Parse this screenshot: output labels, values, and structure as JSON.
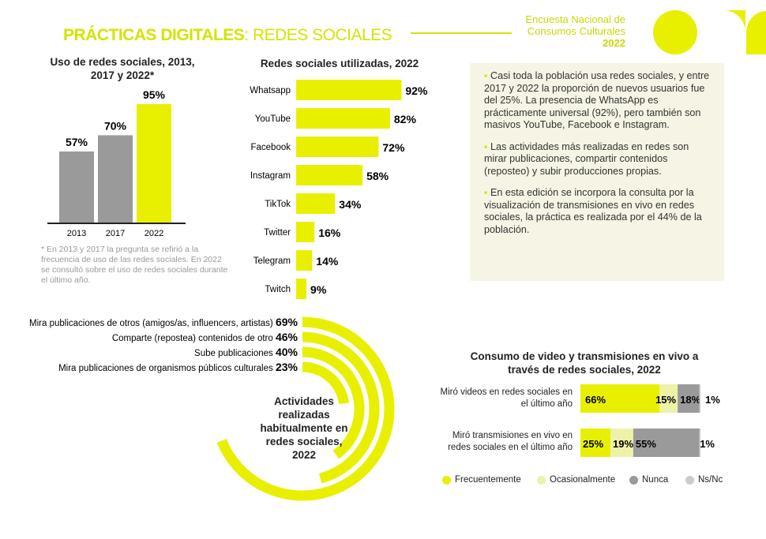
{
  "header": {
    "title_bold": "PRÁCTICAS DIGITALES",
    "title_light": ": REDES SOCIALES",
    "brand_lines": [
      "Encuesta Nacional de",
      "Consumos Culturales",
      "2022"
    ]
  },
  "colors": {
    "accent": "#e8f000",
    "light_yellow": "#eef2a8",
    "gray": "#9a9a9a",
    "light_gray": "#cccccc",
    "title_yellow": "#d4e400"
  },
  "chart_data": [
    {
      "type": "bar",
      "title": "Uso de redes sociales, 2013, 2017 y 2022*",
      "categories": [
        "2013",
        "2017",
        "2022"
      ],
      "values": [
        57,
        70,
        95
      ],
      "labels": [
        "57%",
        "70%",
        "95%"
      ],
      "colors": [
        "#9a9a9a",
        "#9a9a9a",
        "#e8f000"
      ],
      "ylim": [
        0,
        100
      ],
      "footnote": "* En 2013 y 2017 la pregunta se refirió a la frecuencia de uso de las redes sociales. En 2022 se consultó sobre el uso de redes sociales durante el último año."
    },
    {
      "type": "bar",
      "orientation": "horizontal",
      "title": "Redes sociales utilizadas, 2022",
      "categories": [
        "Whatsapp",
        "YouTube",
        "Facebook",
        "Instagram",
        "TikTok",
        "Twitter",
        "Telegram",
        "Twitch"
      ],
      "values": [
        92,
        82,
        72,
        58,
        34,
        16,
        14,
        9
      ],
      "labels": [
        "92%",
        "82%",
        "72%",
        "58%",
        "34%",
        "16%",
        "14%",
        "9%"
      ]
    },
    {
      "type": "radial-bar",
      "title": "Actividades realizadas habitualmente en redes sociales, 2022",
      "categories": [
        "Mira publicaciones de otros (amigos/as, influencers, artistas)",
        "Comparte (repostea) contenidos de otro",
        "Sube publicaciones",
        "Mira publicaciones de organismos públicos culturales"
      ],
      "values": [
        69,
        46,
        40,
        23
      ],
      "labels": [
        "69%",
        "46%",
        "40%",
        "23%"
      ]
    },
    {
      "type": "bar",
      "orientation": "horizontal",
      "stacked": true,
      "title": "Consumo de video y  transmisiones en vivo a través de redes sociales, 2022",
      "categories": [
        "Miró videos en redes sociales en el último año",
        "Miró transmisiones en vivo en redes sociales en el último año"
      ],
      "series": [
        {
          "name": "Frecuentemente",
          "values": [
            66,
            25
          ],
          "color": "#e8f000"
        },
        {
          "name": "Ocasionalmente",
          "values": [
            15,
            19
          ],
          "color": "#eef2a8"
        },
        {
          "name": "Nunca",
          "values": [
            18,
            55
          ],
          "color": "#9a9a9a"
        },
        {
          "name": "Ns/Nc",
          "values": [
            1,
            1
          ],
          "color": "#cccccc"
        }
      ],
      "legend": "bottom"
    }
  ],
  "bullets": [
    "Casi toda la población usa redes sociales, y entre 2017 y 2022 la proporción de nuevos usuarios fue del 25%. La presencia de WhatsApp es prácticamente universal (92%), pero también son masivos YouTube, Facebook e Instagram.",
    "Las actividades más realizadas en redes son mirar publicaciones, compartir contenidos (reposteo) y subir producciones propias.",
    "En esta edición se incorpora la consulta por la visualización de transmisiones en vivo en redes sociales, la práctica es realizada por el 44% de la población."
  ]
}
